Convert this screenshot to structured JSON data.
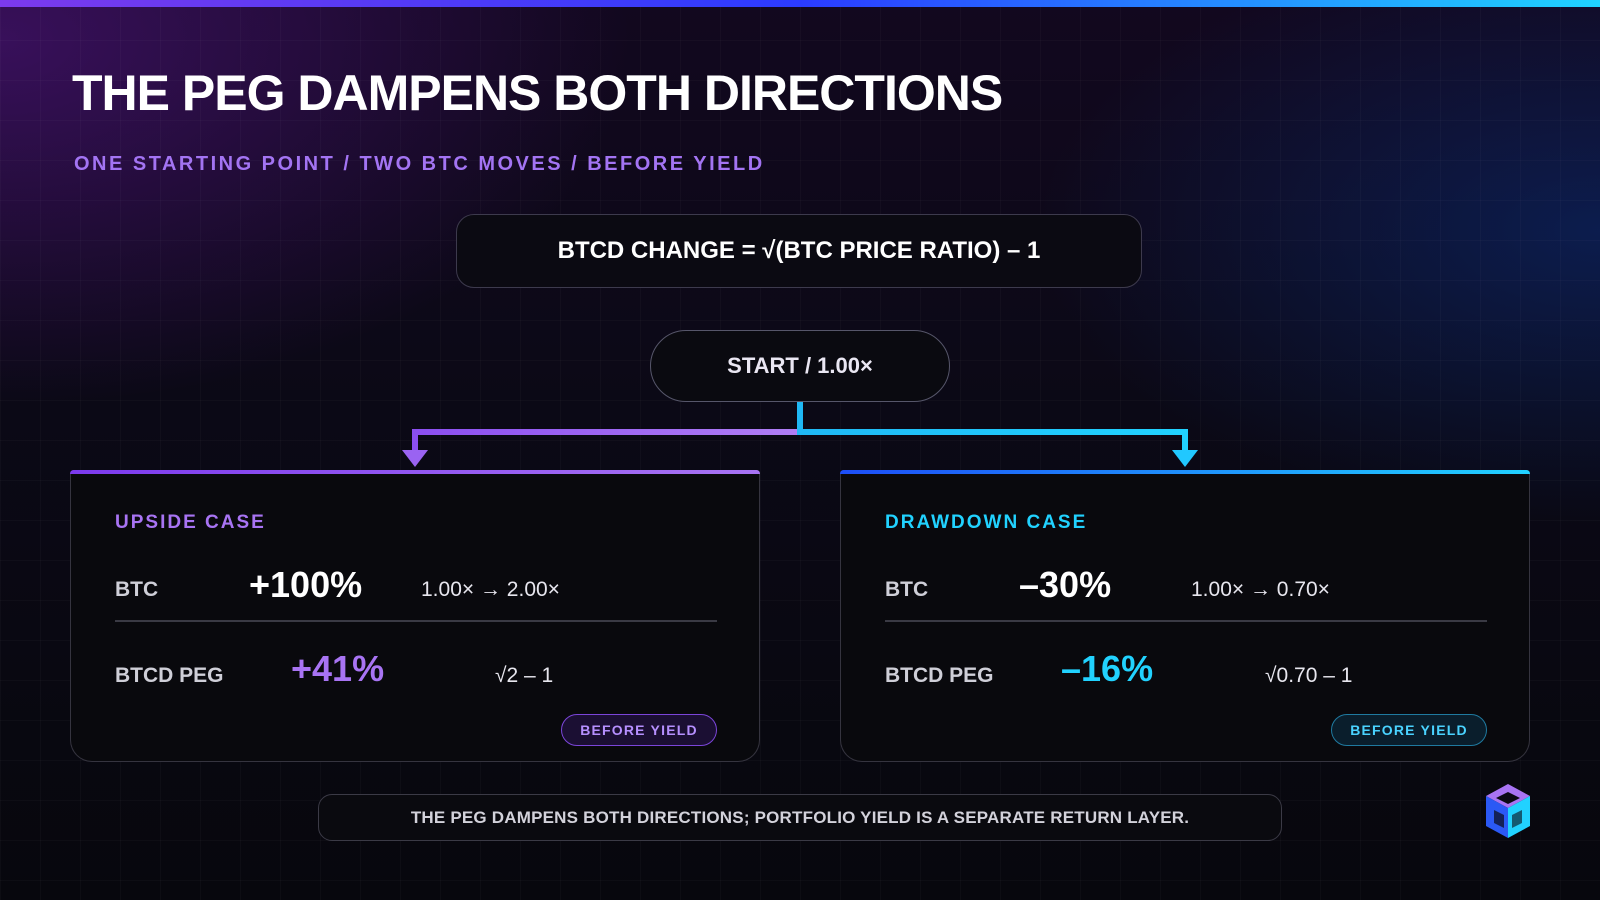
{
  "header": {
    "title": "THE PEG DAMPENS BOTH DIRECTIONS",
    "subtitle": "ONE STARTING POINT / TWO BTC MOVES / BEFORE YIELD"
  },
  "formula": {
    "text": "BTCD CHANGE = √(BTC PRICE RATIO) – 1"
  },
  "start_node": {
    "label": "START / 1.00×"
  },
  "cases": {
    "upside": {
      "title": "UPSIDE CASE",
      "btc_label": "BTC",
      "btc_change": "+100%",
      "btc_ratio": "1.00× → 2.00×",
      "peg_label": "BTCD PEG",
      "peg_change": "+41%",
      "peg_formula": "√2 – 1",
      "badge": "BEFORE YIELD",
      "accent": "#a874f3"
    },
    "drawdown": {
      "title": "DRAWDOWN CASE",
      "btc_label": "BTC",
      "btc_change": "–30%",
      "btc_ratio": "1.00× → 0.70×",
      "peg_label": "BTCD PEG",
      "peg_change": "–16%",
      "peg_formula": "√0.70 – 1",
      "badge": "BEFORE YIELD",
      "accent": "#21d2ff"
    }
  },
  "footer": {
    "text": "THE PEG DAMPENS BOTH DIRECTIONS; PORTFOLIO YIELD IS A SEPARATE RETURN LAYER."
  },
  "logo": {
    "icon": "cube-logo-icon"
  },
  "colors": {
    "purple": "#a874f3",
    "violet": "#7c3aed",
    "blue": "#1d4ef7",
    "cyan": "#21d2ff"
  }
}
